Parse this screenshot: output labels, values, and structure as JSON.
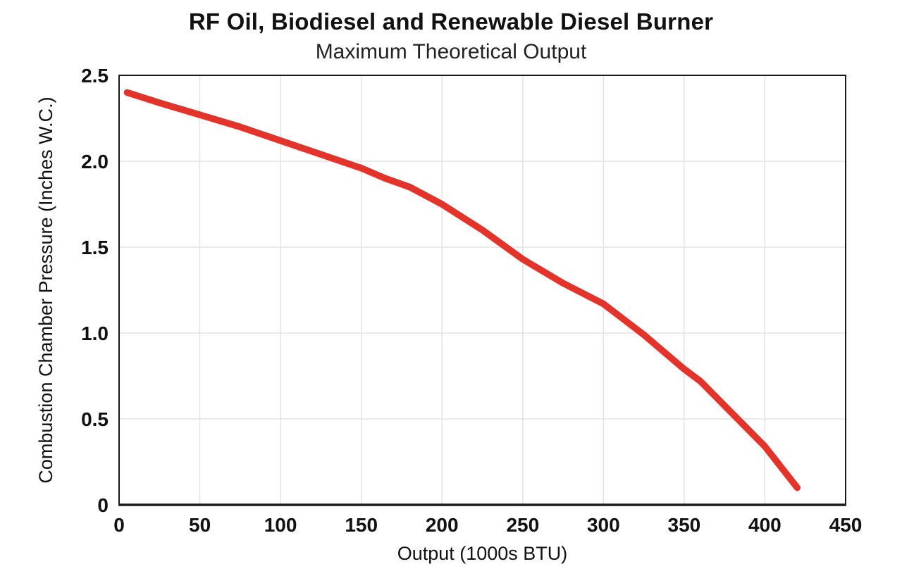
{
  "page": {
    "background": "#ffffff"
  },
  "chart_data": {
    "type": "line",
    "title": "RF Oil, Biodiesel and Renewable Diesel Burner",
    "subtitle": "Maximum Theoretical Output",
    "xlabel": "Output (1000s BTU)",
    "ylabel": "Combustion Chamber Pressure (Inches W.C.)",
    "xlim": [
      0,
      450
    ],
    "ylim": [
      0,
      2.5
    ],
    "grid": true,
    "legend": "none",
    "x_ticks": {
      "values": [
        0,
        50,
        100,
        150,
        200,
        250,
        300,
        350,
        400,
        450
      ],
      "labels": [
        "0",
        "50",
        "100",
        "150",
        "200",
        "250",
        "300",
        "350",
        "400",
        "450"
      ]
    },
    "y_ticks": {
      "values": [
        0,
        0.5,
        1.0,
        1.5,
        2.0,
        2.5
      ],
      "labels": [
        "0",
        "0.5",
        "1.0",
        "1.5",
        "2.0",
        "2.5"
      ]
    },
    "colors": {
      "line": "#E2342B",
      "grid": "#E4E4E4",
      "axis": "#1A1A1A",
      "text": "#111111"
    },
    "series": [
      {
        "points": [
          [
            5,
            2.4
          ],
          [
            25,
            2.34
          ],
          [
            50,
            2.27
          ],
          [
            75,
            2.2
          ],
          [
            100,
            2.12
          ],
          [
            125,
            2.04
          ],
          [
            150,
            1.96
          ],
          [
            165,
            1.9
          ],
          [
            180,
            1.85
          ],
          [
            200,
            1.75
          ],
          [
            225,
            1.6
          ],
          [
            250,
            1.43
          ],
          [
            275,
            1.29
          ],
          [
            300,
            1.17
          ],
          [
            325,
            0.99
          ],
          [
            350,
            0.79
          ],
          [
            360,
            0.72
          ],
          [
            400,
            0.34
          ],
          [
            420,
            0.1
          ]
        ]
      }
    ]
  }
}
